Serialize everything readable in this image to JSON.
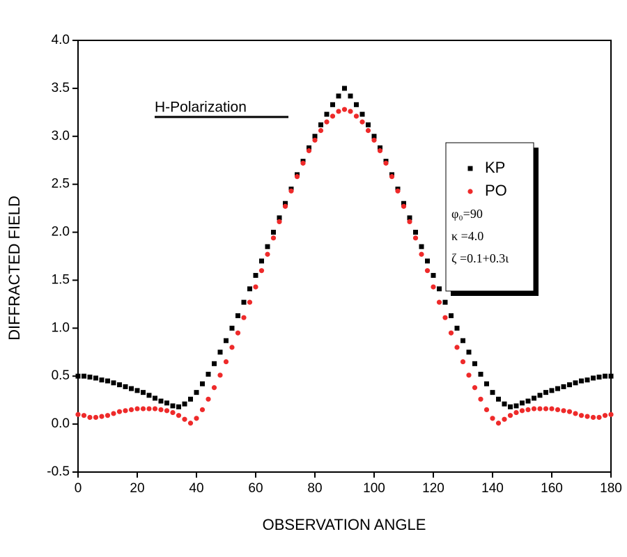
{
  "chart_data": {
    "type": "scatter",
    "xlabel": "OBSERVATION ANGLE",
    "ylabel": "DIFFRACTED FIELD",
    "annotation": "H-Polarization",
    "legend_notes": [
      "φ₀=90",
      "κ =4.0",
      "ζ =0.1+0.3ι"
    ],
    "xlim": [
      0,
      180
    ],
    "ylim": [
      -0.5,
      4.0
    ],
    "xticks": [
      0,
      20,
      40,
      60,
      80,
      100,
      120,
      140,
      160,
      180
    ],
    "yticks": [
      {
        "value": -0.5,
        "label": "-0.5"
      },
      {
        "value": 0,
        "label": "0.0"
      },
      {
        "value": 0.5,
        "label": "0.5"
      },
      {
        "value": 1,
        "label": "1.0"
      },
      {
        "value": 1.5,
        "label": "1.5"
      },
      {
        "value": 2,
        "label": "2.0"
      },
      {
        "value": 2.5,
        "label": "2.5"
      },
      {
        "value": 3,
        "label": "3.0"
      },
      {
        "value": 3.5,
        "label": "3.5"
      },
      {
        "value": 4,
        "label": "4.0"
      }
    ],
    "legend_position": "right",
    "x": [
      0,
      2,
      4,
      6,
      8,
      10,
      12,
      14,
      16,
      18,
      20,
      22,
      24,
      26,
      28,
      30,
      32,
      34,
      36,
      38,
      40,
      42,
      44,
      46,
      48,
      50,
      52,
      54,
      56,
      58,
      60,
      62,
      64,
      66,
      68,
      70,
      72,
      74,
      76,
      78,
      80,
      82,
      84,
      86,
      88,
      90,
      92,
      94,
      96,
      98,
      100,
      102,
      104,
      106,
      108,
      110,
      112,
      114,
      116,
      118,
      120,
      122,
      124,
      126,
      128,
      130,
      132,
      134,
      136,
      138,
      140,
      142,
      144,
      146,
      148,
      150,
      152,
      154,
      156,
      158,
      160,
      162,
      164,
      166,
      168,
      170,
      172,
      174,
      176,
      178,
      180
    ],
    "series": [
      {
        "name": "KP",
        "color": "#000000",
        "marker": "square",
        "values": [
          0.5,
          0.5,
          0.49,
          0.48,
          0.46,
          0.45,
          0.43,
          0.41,
          0.39,
          0.37,
          0.35,
          0.33,
          0.3,
          0.27,
          0.24,
          0.22,
          0.19,
          0.18,
          0.21,
          0.26,
          0.33,
          0.42,
          0.52,
          0.63,
          0.75,
          0.87,
          1.0,
          1.13,
          1.27,
          1.41,
          1.55,
          1.7,
          1.85,
          2.0,
          2.15,
          2.3,
          2.45,
          2.6,
          2.74,
          2.88,
          3.0,
          3.12,
          3.23,
          3.33,
          3.42,
          3.5,
          3.42,
          3.33,
          3.23,
          3.12,
          3.0,
          2.88,
          2.74,
          2.6,
          2.45,
          2.3,
          2.15,
          2.0,
          1.85,
          1.7,
          1.55,
          1.41,
          1.27,
          1.13,
          1.0,
          0.87,
          0.75,
          0.63,
          0.52,
          0.42,
          0.33,
          0.26,
          0.21,
          0.18,
          0.19,
          0.22,
          0.24,
          0.27,
          0.3,
          0.33,
          0.35,
          0.37,
          0.39,
          0.41,
          0.43,
          0.45,
          0.46,
          0.48,
          0.49,
          0.5,
          0.5
        ]
      },
      {
        "name": "PO",
        "color": "#ee2a2a",
        "marker": "circle",
        "values": [
          0.1,
          0.09,
          0.07,
          0.07,
          0.08,
          0.09,
          0.11,
          0.13,
          0.14,
          0.15,
          0.16,
          0.16,
          0.16,
          0.16,
          0.15,
          0.14,
          0.12,
          0.09,
          0.05,
          0.01,
          0.06,
          0.15,
          0.26,
          0.38,
          0.51,
          0.65,
          0.8,
          0.95,
          1.11,
          1.27,
          1.43,
          1.6,
          1.77,
          1.94,
          2.11,
          2.27,
          2.43,
          2.58,
          2.72,
          2.85,
          2.96,
          3.06,
          3.15,
          3.21,
          3.26,
          3.28,
          3.26,
          3.21,
          3.15,
          3.06,
          2.96,
          2.85,
          2.72,
          2.58,
          2.43,
          2.27,
          2.11,
          1.94,
          1.77,
          1.6,
          1.43,
          1.27,
          1.11,
          0.95,
          0.8,
          0.65,
          0.51,
          0.38,
          0.26,
          0.15,
          0.06,
          0.01,
          0.05,
          0.09,
          0.12,
          0.14,
          0.15,
          0.16,
          0.16,
          0.16,
          0.16,
          0.15,
          0.14,
          0.13,
          0.11,
          0.09,
          0.08,
          0.07,
          0.07,
          0.09,
          0.1
        ]
      }
    ]
  }
}
